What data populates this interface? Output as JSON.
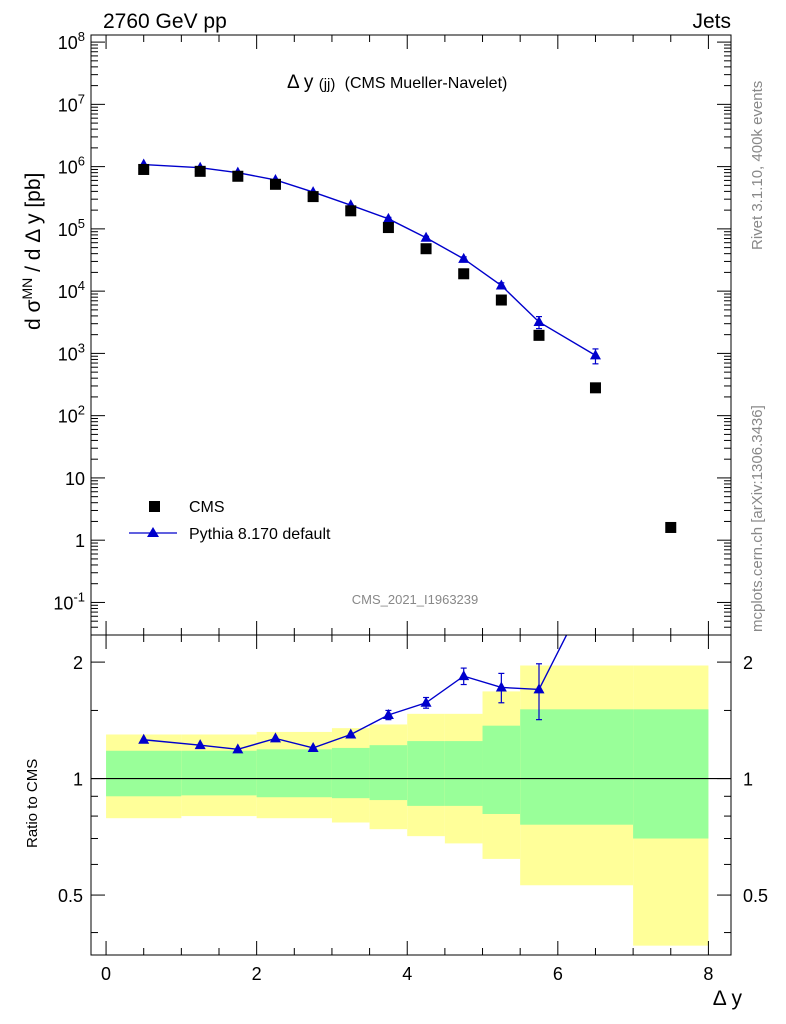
{
  "header": {
    "left": "2760 GeV pp",
    "right": "Jets",
    "plot_title_main": "Δ y",
    "plot_title_sub": "(jj)",
    "plot_title_rest": "(CMS Mueller-Navelet)",
    "analysis_id": "CMS_2021_I1963239",
    "side_rivet": "Rivet 3.1.10,  400k events",
    "side_mcplots": "mcplots.cern.ch [arXiv:1306.3436]"
  },
  "labels": {
    "ylabel_main": "d σMN / d Δ y [pb]",
    "ylabel_ratio": "Ratio to CMS",
    "xlabel": "Δ y"
  },
  "legend": {
    "cms": "CMS",
    "pythia": "Pythia 8.170 default"
  },
  "colors": {
    "pythia": "#0000cc",
    "cms": "#000000",
    "band_outer": "#ffff99",
    "band_inner": "#99ff99"
  },
  "chart_data": [
    {
      "type": "scatter",
      "panel": "main",
      "xlim": [
        -0.2,
        8.3
      ],
      "ylim": [
        0.03,
        130000000
      ],
      "log_y": true,
      "ytick_labels": [
        "10^-1",
        "1",
        "10",
        "10^2",
        "10^3",
        "10^4",
        "10^5",
        "10^6",
        "10^7",
        "10^8"
      ],
      "series": [
        {
          "name": "CMS",
          "x": [
            0.5,
            1.25,
            1.75,
            2.25,
            2.75,
            3.25,
            3.75,
            4.25,
            4.75,
            5.25,
            5.75,
            6.5,
            7.5
          ],
          "y": [
            900000,
            840000,
            700000,
            520000,
            330000,
            195000,
            105000,
            48000,
            19000,
            7200,
            1950,
            280,
            1.6
          ]
        },
        {
          "name": "Pythia 8.170 default",
          "x": [
            0.5,
            1.25,
            1.75,
            2.25,
            2.75,
            3.25,
            3.75,
            4.25,
            4.75,
            5.25,
            5.75,
            6.5
          ],
          "y": [
            1080000,
            960000,
            800000,
            610000,
            390000,
            240000,
            145000,
            72000,
            33000,
            12300,
            3200,
            930
          ],
          "err": [
            0,
            0,
            0,
            0,
            0,
            0,
            8000,
            4000,
            2500,
            1300,
            700,
            250
          ]
        }
      ]
    },
    {
      "type": "line",
      "panel": "ratio",
      "xlim": [
        -0.2,
        8.3
      ],
      "ylim": [
        0.35,
        2.35
      ],
      "ytick_labels": [
        "0.5",
        "1",
        "2"
      ],
      "xtick_labels": [
        "0",
        "2",
        "4",
        "6",
        "8"
      ],
      "bands": {
        "edges": [
          0,
          1,
          2,
          3,
          3.5,
          4,
          4.5,
          5,
          5.5,
          7,
          8
        ],
        "inner_low": [
          0.9,
          0.905,
          0.895,
          0.89,
          0.88,
          0.85,
          0.85,
          0.81,
          0.76,
          0.7,
          0.37
        ],
        "inner_high": [
          1.18,
          1.18,
          1.19,
          1.2,
          1.22,
          1.25,
          1.25,
          1.37,
          1.51,
          1.51,
          2.08
        ],
        "outer_low": [
          0.79,
          0.8,
          0.79,
          0.77,
          0.74,
          0.71,
          0.68,
          0.62,
          0.53,
          0.37,
          0.35
        ],
        "outer_high": [
          1.3,
          1.3,
          1.32,
          1.35,
          1.38,
          1.47,
          1.47,
          1.68,
          1.96,
          1.96,
          2.35
        ]
      },
      "series": [
        {
          "name": "Pythia 8.170 default",
          "x": [
            0.5,
            1.25,
            1.75,
            2.25,
            2.75,
            3.25,
            3.75,
            4.25,
            4.75,
            5.25,
            5.75,
            6.5
          ],
          "y": [
            1.26,
            1.22,
            1.19,
            1.27,
            1.2,
            1.3,
            1.46,
            1.57,
            1.84,
            1.72,
            1.7,
            3.3
          ],
          "err": [
            0,
            0,
            0,
            0,
            0,
            0,
            0.04,
            0.05,
            0.09,
            0.15,
            0.28,
            0
          ]
        }
      ]
    }
  ]
}
